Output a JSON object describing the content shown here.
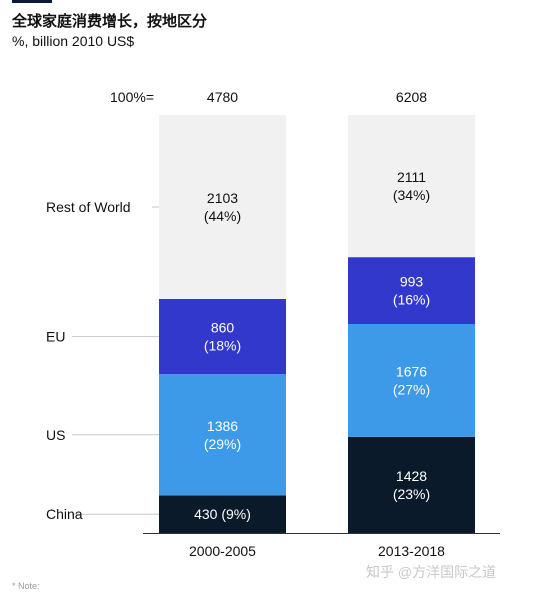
{
  "header": {
    "title": "全球家庭消费增长，按地区分",
    "subtitle": "%, billion 2010 US$"
  },
  "footer": {
    "note": "* Note:",
    "watermark": "知乎 @方洋国际之道"
  },
  "colors": {
    "Rest of World": "#f1f1f1",
    "EU": "#3338cc",
    "US": "#3d9ae8",
    "China": "#0b1a2a"
  },
  "chart_data": {
    "type": "bar",
    "stacked": true,
    "total_label": "100%=",
    "categories": [
      "2000-2005",
      "2013-2018"
    ],
    "totals": [
      4780,
      6208
    ],
    "series": [
      {
        "name": "China",
        "values": [
          430,
          1428
        ],
        "percent": [
          9,
          23
        ],
        "labels": [
          "430 (9%)",
          "1428\n(23%)"
        ]
      },
      {
        "name": "US",
        "values": [
          1386,
          1676
        ],
        "percent": [
          29,
          27
        ],
        "labels": [
          "1386\n(29%)",
          "1676\n(27%)"
        ]
      },
      {
        "name": "EU",
        "values": [
          860,
          993
        ],
        "percent": [
          18,
          16
        ],
        "labels": [
          "860\n(18%)",
          "993\n(16%)"
        ]
      },
      {
        "name": "Rest of World",
        "values": [
          2103,
          2111
        ],
        "percent": [
          44,
          34
        ],
        "labels": [
          "2103\n(44%)",
          "2111\n(34%)"
        ]
      }
    ]
  }
}
